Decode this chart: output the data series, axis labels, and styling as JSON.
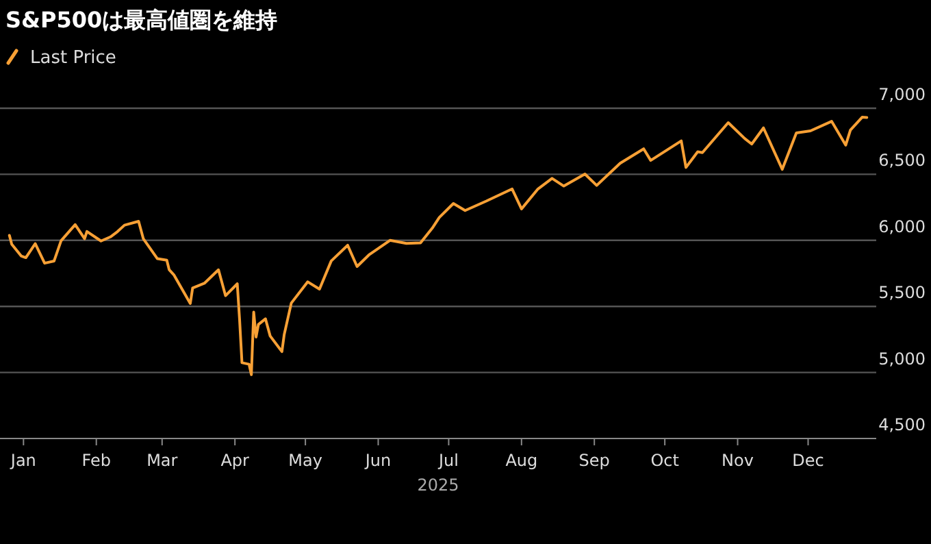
{
  "chart_data": {
    "type": "line",
    "title": "S&P500は最高値圏を維持",
    "xlabel": "2025",
    "legend": "top left",
    "grid": "y",
    "xlim": [
      "2024-12-22",
      "2025-12-30"
    ],
    "xticks": [
      {
        "value": "2025-01-01",
        "label": "Jan"
      },
      {
        "value": "2025-02-01",
        "label": "Feb"
      },
      {
        "value": "2025-03-01",
        "label": "Mar"
      },
      {
        "value": "2025-04-01",
        "label": "Apr"
      },
      {
        "value": "2025-05-01",
        "label": "May"
      },
      {
        "value": "2025-06-01",
        "label": "Jun"
      },
      {
        "value": "2025-07-01",
        "label": "Jul"
      },
      {
        "value": "2025-08-01",
        "label": "Aug"
      },
      {
        "value": "2025-09-01",
        "label": "Sep"
      },
      {
        "value": "2025-10-01",
        "label": "Oct"
      },
      {
        "value": "2025-11-01",
        "label": "Nov"
      },
      {
        "value": "2025-12-01",
        "label": "Dec"
      }
    ],
    "ylim": [
      4500,
      7000
    ],
    "yticks": [
      {
        "value": 4500,
        "label": "4,500"
      },
      {
        "value": 5000,
        "label": "5,000"
      },
      {
        "value": 5500,
        "label": "5,500"
      },
      {
        "value": 6000,
        "label": "6,000"
      },
      {
        "value": 6500,
        "label": "6,500"
      },
      {
        "value": 7000,
        "label": "7,000"
      }
    ],
    "series": [
      {
        "name": "Last Price",
        "color": "#f7a035",
        "x": [
          "2024-12-26",
          "2024-12-27",
          "2024-12-31",
          "2025-01-02",
          "2025-01-06",
          "2025-01-10",
          "2025-01-14",
          "2025-01-17",
          "2025-01-23",
          "2025-01-27",
          "2025-01-28",
          "2025-02-03",
          "2025-02-07",
          "2025-02-10",
          "2025-02-13",
          "2025-02-19",
          "2025-02-21",
          "2025-02-27",
          "2025-03-03",
          "2025-03-04",
          "2025-03-06",
          "2025-03-10",
          "2025-03-13",
          "2025-03-14",
          "2025-03-19",
          "2025-03-25",
          "2025-03-28",
          "2025-04-02",
          "2025-04-03",
          "2025-04-04",
          "2025-04-07",
          "2025-04-08",
          "2025-04-09",
          "2025-04-10",
          "2025-04-11",
          "2025-04-14",
          "2025-04-16",
          "2025-04-21",
          "2025-04-22",
          "2025-04-25",
          "2025-05-02",
          "2025-05-07",
          "2025-05-12",
          "2025-05-19",
          "2025-05-23",
          "2025-05-28",
          "2025-06-06",
          "2025-06-13",
          "2025-06-19",
          "2025-06-24",
          "2025-06-27",
          "2025-07-03",
          "2025-07-08",
          "2025-07-17",
          "2025-07-28",
          "2025-08-01",
          "2025-08-08",
          "2025-08-14",
          "2025-08-19",
          "2025-08-28",
          "2025-09-02",
          "2025-09-12",
          "2025-09-22",
          "2025-09-25",
          "2025-10-08",
          "2025-10-10",
          "2025-10-15",
          "2025-10-17",
          "2025-10-28",
          "2025-11-04",
          "2025-11-07",
          "2025-11-12",
          "2025-11-20",
          "2025-11-26",
          "2025-12-02",
          "2025-12-11",
          "2025-12-17",
          "2025-12-19",
          "2025-12-24",
          "2025-12-26"
        ],
        "values": [
          6038,
          5971,
          5882,
          5869,
          5975,
          5827,
          5843,
          5997,
          6119,
          6012,
          6067,
          5995,
          6026,
          6066,
          6115,
          6144,
          6013,
          5861,
          5850,
          5778,
          5739,
          5615,
          5522,
          5639,
          5675,
          5777,
          5581,
          5671,
          5397,
          5074,
          5062,
          4983,
          5457,
          5268,
          5363,
          5406,
          5276,
          5158,
          5288,
          5525,
          5686,
          5631,
          5844,
          5963,
          5802,
          5889,
          6000,
          5977,
          5981,
          6092,
          6173,
          6279,
          6226,
          6297,
          6389,
          6238,
          6389,
          6469,
          6411,
          6502,
          6416,
          6584,
          6693,
          6605,
          6753,
          6552,
          6671,
          6664,
          6891,
          6771,
          6729,
          6851,
          6538,
          6813,
          6829,
          6901,
          6721,
          6835,
          6932,
          6930
        ]
      }
    ]
  }
}
